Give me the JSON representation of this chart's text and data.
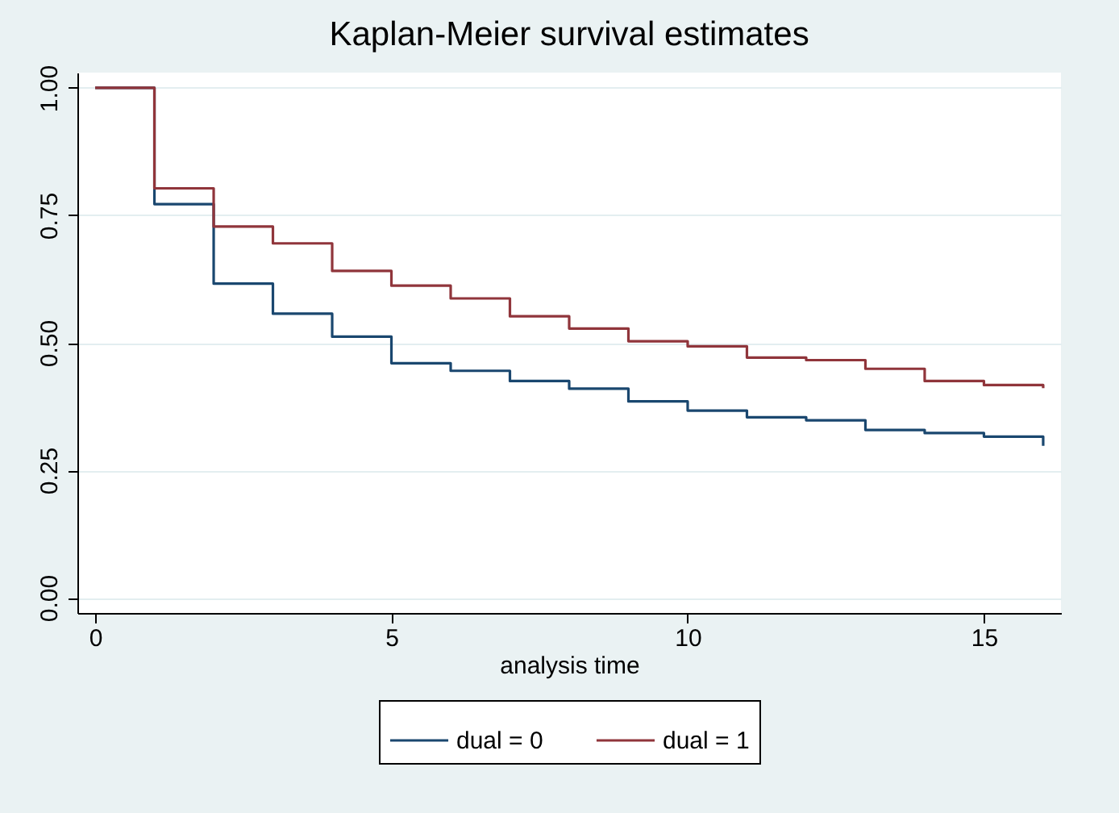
{
  "chart_data": {
    "type": "step",
    "title": "Kaplan-Meier survival estimates",
    "xlabel": "analysis time",
    "x": [
      0,
      1,
      2,
      3,
      4,
      5,
      6,
      7,
      8,
      9,
      10,
      11,
      12,
      13,
      14,
      15,
      16
    ],
    "series": [
      {
        "name": "dual = 0",
        "color": "#1a476f",
        "values": [
          1.0,
          0.772,
          0.616,
          0.557,
          0.512,
          0.46,
          0.445,
          0.425,
          0.41,
          0.385,
          0.367,
          0.354,
          0.348,
          0.329,
          0.323,
          0.316,
          0.298
        ]
      },
      {
        "name": "dual = 1",
        "color": "#90353b",
        "values": [
          1.0,
          0.803,
          0.728,
          0.695,
          0.641,
          0.612,
          0.587,
          0.552,
          0.528,
          0.503,
          0.493,
          0.471,
          0.466,
          0.449,
          0.425,
          0.417,
          0.411
        ]
      }
    ],
    "xlim": [
      -0.3,
      16.3
    ],
    "ylim": [
      -0.03,
      1.03
    ],
    "xticks": [
      0,
      5,
      10,
      15
    ],
    "yticks": [
      {
        "value": 0,
        "label": "0.00"
      },
      {
        "value": 0.25,
        "label": "0.25"
      },
      {
        "value": 0.5,
        "label": "0.50"
      },
      {
        "value": 0.75,
        "label": "0.75"
      },
      {
        "value": 1,
        "label": "1.00"
      }
    ],
    "grid": "y",
    "legend": "bottom"
  }
}
